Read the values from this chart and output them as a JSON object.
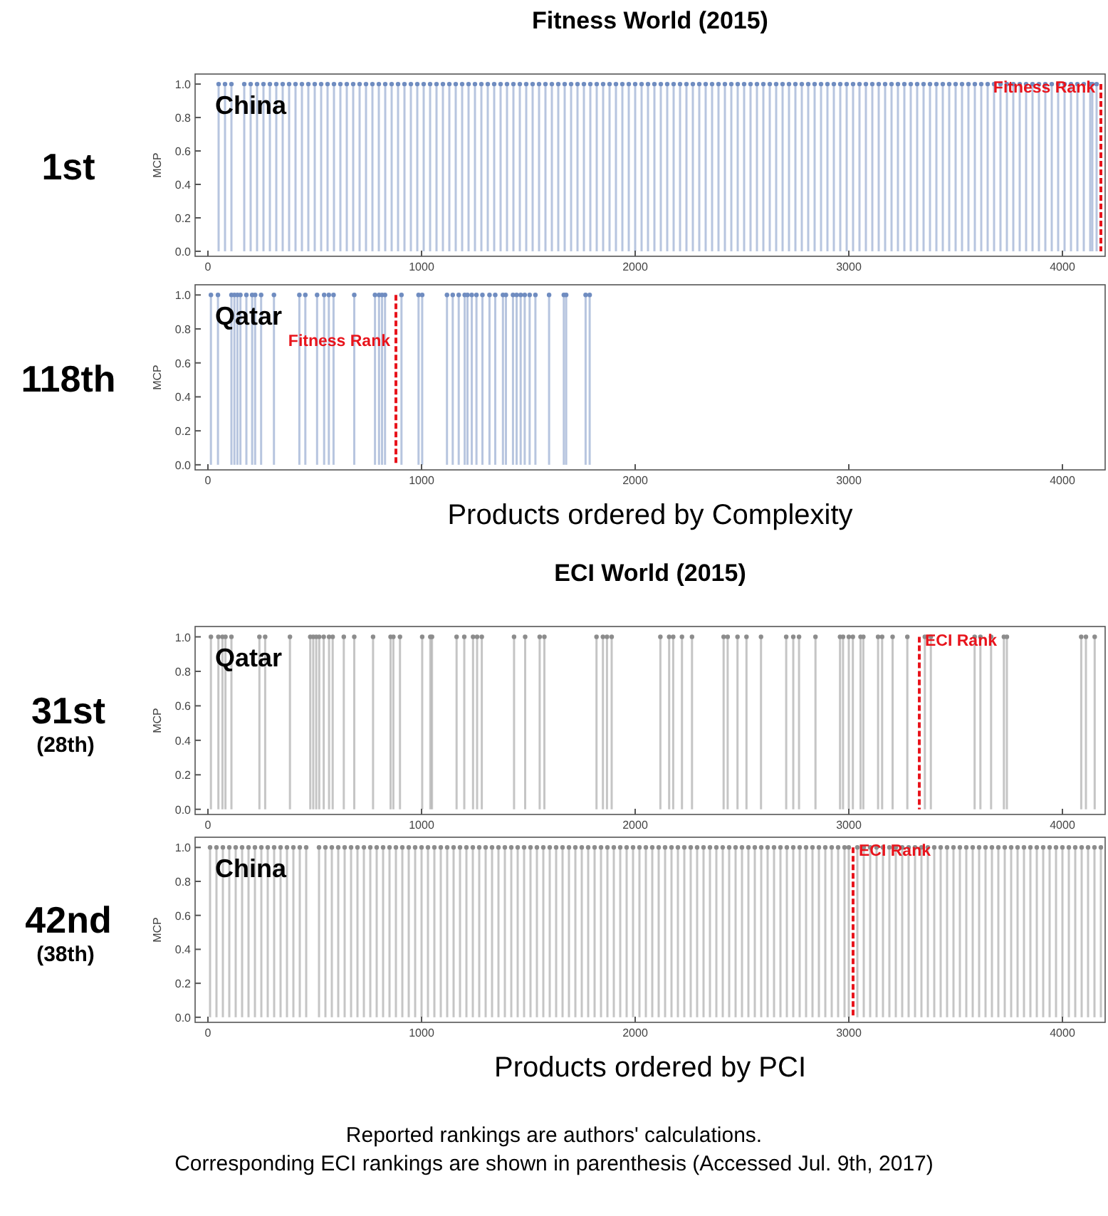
{
  "chart_data": [
    {
      "type": "lollipop",
      "title": "Fitness World (2015)",
      "ylabel": "MCP",
      "marker": "circle",
      "xlim": [
        -60,
        4200
      ],
      "ylim": [
        -0.03,
        1.06
      ],
      "xticks": [
        0,
        1000,
        2000,
        3000,
        4000
      ],
      "yticks": [
        {
          "value": 0,
          "label": "0.0"
        },
        {
          "value": 0.2,
          "label": "0.2"
        },
        {
          "value": 0.4,
          "label": "0.4"
        },
        {
          "value": 0.6,
          "label": "0.6"
        },
        {
          "value": 0.8,
          "label": "0.8"
        },
        {
          "value": 1,
          "label": "1.0"
        }
      ],
      "annotations": [
        "China",
        "1st"
      ],
      "ref_lines": [
        {
          "axis": "x",
          "value": 4180,
          "label": "Fitness Rank",
          "color": "#e8141c",
          "line_style": "dotted"
        }
      ],
      "series": [
        {
          "color": "#6f8cc0",
          "x": [
            50,
            80,
            110,
            170,
            200,
            230,
            260,
            290,
            320,
            350,
            380,
            410,
            440,
            470,
            500,
            530,
            560,
            590,
            620,
            650,
            680,
            710,
            740,
            770,
            800,
            830,
            860,
            890,
            920,
            950,
            980,
            1010,
            1040,
            1070,
            1100,
            1130,
            1160,
            1190,
            1220,
            1250,
            1280,
            1310,
            1340,
            1370,
            1400,
            1430,
            1460,
            1490,
            1520,
            1550,
            1580,
            1610,
            1640,
            1670,
            1700,
            1730,
            1760,
            1790,
            1820,
            1850,
            1880,
            1910,
            1940,
            1970,
            2000,
            2030,
            2060,
            2090,
            2120,
            2150,
            2180,
            2210,
            2240,
            2270,
            2300,
            2330,
            2360,
            2390,
            2420,
            2450,
            2480,
            2510,
            2540,
            2570,
            2600,
            2630,
            2660,
            2690,
            2720,
            2750,
            2780,
            2810,
            2840,
            2870,
            2900,
            2930,
            2960,
            2990,
            3020,
            3050,
            3080,
            3110,
            3140,
            3170,
            3200,
            3230,
            3260,
            3290,
            3320,
            3350,
            3380,
            3410,
            3440,
            3470,
            3500,
            3530,
            3560,
            3590,
            3620,
            3650,
            3680,
            3710,
            3740,
            3770,
            3800,
            3830,
            3860,
            3890,
            3920,
            3950,
            3980,
            4010,
            4040,
            4070,
            4100,
            4130,
            4140,
            4160
          ],
          "values": [
            1,
            1,
            1,
            1,
            1,
            1,
            1,
            1,
            1,
            1,
            1,
            1,
            1,
            1,
            1,
            1,
            1,
            1,
            1,
            1,
            1,
            1,
            1,
            1,
            1,
            1,
            1,
            1,
            1,
            1,
            1,
            1,
            1,
            1,
            1,
            1,
            1,
            1,
            1,
            1,
            1,
            1,
            1,
            1,
            1,
            1,
            1,
            1,
            1,
            1,
            1,
            1,
            1,
            1,
            1,
            1,
            1,
            1,
            1,
            1,
            1,
            1,
            1,
            1,
            1,
            1,
            1,
            1,
            1,
            1,
            1,
            1,
            1,
            1,
            1,
            1,
            1,
            1,
            1,
            1,
            1,
            1,
            1,
            1,
            1,
            1,
            1,
            1,
            1,
            1,
            1,
            1,
            1,
            1,
            1,
            1,
            1,
            1,
            1,
            1,
            1,
            1,
            1,
            1,
            1,
            1,
            1,
            1,
            1,
            1,
            1,
            1,
            1,
            1,
            1,
            1,
            1,
            1,
            1,
            1,
            1,
            1,
            1,
            1,
            1,
            1,
            1,
            1,
            1,
            1,
            1,
            1,
            1,
            1,
            1,
            1,
            1,
            1
          ]
        }
      ]
    },
    {
      "type": "lollipop",
      "xlabel": "Products ordered by Complexity",
      "ylabel": "MCP",
      "marker": "circle",
      "xlim": [
        -60,
        4200
      ],
      "ylim": [
        -0.03,
        1.06
      ],
      "xticks": [
        0,
        1000,
        2000,
        3000,
        4000
      ],
      "yticks": [
        {
          "value": 0,
          "label": "0.0"
        },
        {
          "value": 0.2,
          "label": "0.2"
        },
        {
          "value": 0.4,
          "label": "0.4"
        },
        {
          "value": 0.6,
          "label": "0.6"
        },
        {
          "value": 0.8,
          "label": "0.8"
        },
        {
          "value": 1,
          "label": "1.0"
        }
      ],
      "annotations": [
        "Qatar",
        "118th"
      ],
      "ref_lines": [
        {
          "axis": "x",
          "value": 880,
          "label": "Fitness Rank",
          "color": "#e8141c",
          "line_style": "dotted"
        }
      ],
      "series": [
        {
          "color": "#6f8cc0",
          "x": [
            14,
            47,
            110,
            124,
            138,
            152,
            180,
            207,
            221,
            249,
            309,
            428,
            456,
            511,
            544,
            566,
            588,
            685,
            782,
            801,
            815,
            829,
            906,
            986,
            1003,
            1119,
            1146,
            1174,
            1202,
            1215,
            1235,
            1257,
            1285,
            1318,
            1345,
            1381,
            1395,
            1428,
            1445,
            1464,
            1483,
            1506,
            1533,
            1597,
            1666,
            1677,
            1768,
            1787
          ],
          "values": [
            1,
            1,
            1,
            1,
            1,
            1,
            1,
            1,
            1,
            1,
            1,
            1,
            1,
            1,
            1,
            1,
            1,
            1,
            1,
            1,
            1,
            1,
            1,
            1,
            1,
            1,
            1,
            1,
            1,
            1,
            1,
            1,
            1,
            1,
            1,
            1,
            1,
            1,
            1,
            1,
            1,
            1,
            1,
            1,
            1,
            1,
            1,
            1
          ]
        }
      ]
    },
    {
      "type": "lollipop",
      "title": "ECI World (2015)",
      "ylabel": "MCP",
      "marker": "circle",
      "xlim": [
        -60,
        4200
      ],
      "ylim": [
        -0.03,
        1.06
      ],
      "xticks": [
        0,
        1000,
        2000,
        3000,
        4000
      ],
      "yticks": [
        {
          "value": 0,
          "label": "0.0"
        },
        {
          "value": 0.2,
          "label": "0.2"
        },
        {
          "value": 0.4,
          "label": "0.4"
        },
        {
          "value": 0.6,
          "label": "0.6"
        },
        {
          "value": 0.8,
          "label": "0.8"
        },
        {
          "value": 1,
          "label": "1.0"
        }
      ],
      "annotations": [
        "Qatar",
        "31st",
        "(28th)"
      ],
      "ref_lines": [
        {
          "axis": "x",
          "value": 3330,
          "label": "ECI Rank",
          "color": "#e8141c",
          "line_style": "dotted"
        }
      ],
      "series": [
        {
          "color": "#8c8c8c",
          "x": [
            14,
            49,
            68,
            82,
            110,
            241,
            268,
            384,
            479,
            493,
            507,
            521,
            542,
            567,
            584,
            636,
            685,
            773,
            855,
            868,
            899,
            1003,
            1041,
            1049,
            1164,
            1200,
            1241,
            1260,
            1282,
            1433,
            1485,
            1553,
            1575,
            1819,
            1849,
            1868,
            1890,
            2118,
            2159,
            2178,
            2219,
            2266,
            2414,
            2433,
            2479,
            2521,
            2589,
            2707,
            2740,
            2767,
            2844,
            2959,
            2973,
            3000,
            3019,
            3055,
            3068,
            3137,
            3156,
            3205,
            3274,
            3356,
            3384,
            3589,
            3616,
            3666,
            3726,
            3740,
            4088,
            4110,
            4151
          ],
          "values": [
            1,
            1,
            1,
            1,
            1,
            1,
            1,
            1,
            1,
            1,
            1,
            1,
            1,
            1,
            1,
            1,
            1,
            1,
            1,
            1,
            1,
            1,
            1,
            1,
            1,
            1,
            1,
            1,
            1,
            1,
            1,
            1,
            1,
            1,
            1,
            1,
            1,
            1,
            1,
            1,
            1,
            1,
            1,
            1,
            1,
            1,
            1,
            1,
            1,
            1,
            1,
            1,
            1,
            1,
            1,
            1,
            1,
            1,
            1,
            1,
            1,
            1,
            1,
            1,
            1,
            1,
            1,
            1,
            1,
            1,
            1
          ]
        }
      ]
    },
    {
      "type": "lollipop",
      "xlabel": "Products ordered by PCI",
      "ylabel": "MCP",
      "marker": "circle",
      "xlim": [
        -60,
        4200
      ],
      "ylim": [
        -0.03,
        1.06
      ],
      "xticks": [
        0,
        1000,
        2000,
        3000,
        4000
      ],
      "yticks": [
        {
          "value": 0,
          "label": "0.0"
        },
        {
          "value": 0.2,
          "label": "0.2"
        },
        {
          "value": 0.4,
          "label": "0.4"
        },
        {
          "value": 0.6,
          "label": "0.6"
        },
        {
          "value": 0.8,
          "label": "0.8"
        },
        {
          "value": 1,
          "label": "1.0"
        }
      ],
      "annotations": [
        "China",
        "42nd",
        "(38th)",
        "Reported rankings are authors' calculations.",
        "Corresponding ECI rankings are shown in parenthesis (Accessed Jul. 9th, 2017)"
      ],
      "ref_lines": [
        {
          "axis": "x",
          "value": 3020,
          "label": "ECI Rank",
          "color": "#e8141c",
          "line_style": "dotted"
        }
      ],
      "series": [
        {
          "color": "#8c8c8c",
          "x": [
            10,
            40,
            70,
            100,
            130,
            160,
            190,
            220,
            250,
            280,
            310,
            340,
            370,
            400,
            430,
            460,
            520,
            550,
            580,
            610,
            640,
            670,
            700,
            730,
            760,
            790,
            820,
            850,
            880,
            910,
            940,
            970,
            1000,
            1030,
            1060,
            1090,
            1120,
            1150,
            1180,
            1210,
            1240,
            1270,
            1300,
            1330,
            1360,
            1390,
            1420,
            1450,
            1480,
            1510,
            1540,
            1570,
            1600,
            1630,
            1660,
            1690,
            1720,
            1750,
            1780,
            1810,
            1840,
            1870,
            1900,
            1930,
            1960,
            1990,
            2020,
            2050,
            2080,
            2110,
            2140,
            2170,
            2200,
            2230,
            2260,
            2290,
            2320,
            2350,
            2380,
            2410,
            2440,
            2470,
            2500,
            2530,
            2560,
            2590,
            2620,
            2650,
            2680,
            2710,
            2740,
            2770,
            2800,
            2830,
            2860,
            2890,
            2920,
            2950,
            2980,
            3000,
            3040,
            3070,
            3100,
            3130,
            3160,
            3190,
            3220,
            3250,
            3280,
            3310,
            3340,
            3370,
            3400,
            3430,
            3460,
            3490,
            3520,
            3550,
            3580,
            3610,
            3640,
            3670,
            3700,
            3730,
            3760,
            3790,
            3820,
            3850,
            3880,
            3910,
            3940,
            3970,
            4000,
            4030,
            4060,
            4090,
            4120,
            4150,
            4180
          ],
          "values": [
            1,
            1,
            1,
            1,
            1,
            1,
            1,
            1,
            1,
            1,
            1,
            1,
            1,
            1,
            1,
            1,
            1,
            1,
            1,
            1,
            1,
            1,
            1,
            1,
            1,
            1,
            1,
            1,
            1,
            1,
            1,
            1,
            1,
            1,
            1,
            1,
            1,
            1,
            1,
            1,
            1,
            1,
            1,
            1,
            1,
            1,
            1,
            1,
            1,
            1,
            1,
            1,
            1,
            1,
            1,
            1,
            1,
            1,
            1,
            1,
            1,
            1,
            1,
            1,
            1,
            1,
            1,
            1,
            1,
            1,
            1,
            1,
            1,
            1,
            1,
            1,
            1,
            1,
            1,
            1,
            1,
            1,
            1,
            1,
            1,
            1,
            1,
            1,
            1,
            1,
            1,
            1,
            1,
            1,
            1,
            1,
            1,
            1,
            1,
            1,
            1,
            1,
            1,
            1,
            1,
            1,
            1,
            1,
            1,
            1,
            1,
            1,
            1,
            1,
            1,
            1,
            1,
            1,
            1,
            1,
            1,
            1,
            1,
            1,
            1,
            1,
            1,
            1,
            1,
            1,
            1,
            1,
            1,
            1,
            1,
            1,
            1,
            1,
            1
          ]
        }
      ]
    }
  ]
}
